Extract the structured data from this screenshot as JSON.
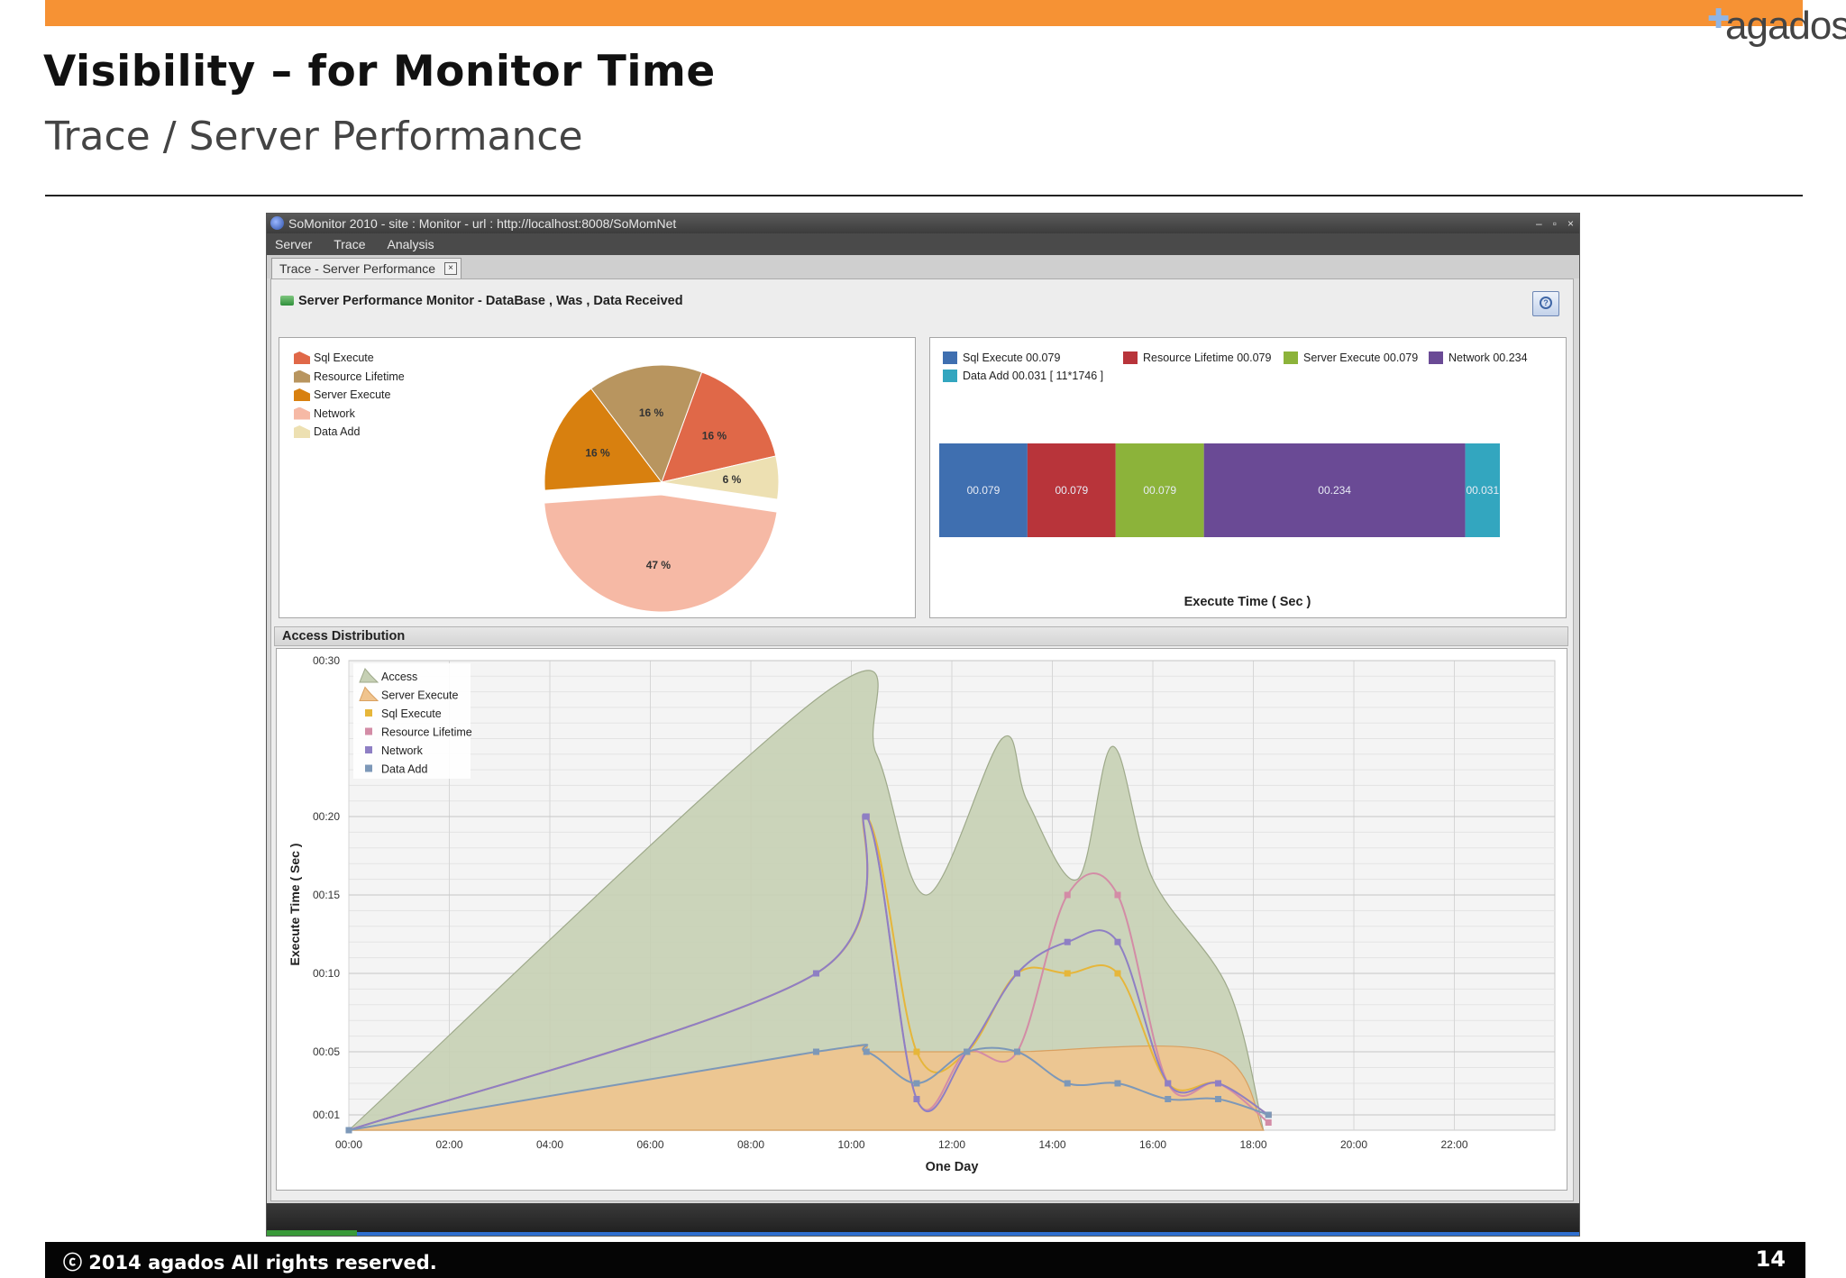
{
  "slide": {
    "title": "Visibility – for Monitor Time",
    "subtitle": "Trace / Server Performance",
    "logo": "agados",
    "footer": "ⓒ 2014 agados All rights reserved.",
    "page_number": "14",
    "accent_color": "#f69234"
  },
  "window": {
    "title": "SoMonitor 2010 - site : Monitor - url : http://localhost:8008/SoMomNet",
    "controls": [
      "–",
      "▫",
      "×"
    ],
    "menu": [
      "Server",
      "Trace",
      "Analysis"
    ],
    "tab_label": "Trace - Server Performance",
    "tab_close": "×",
    "monitor_title": "Server Performance Monitor - DataBase , Was , Data Received",
    "help_icon": "?"
  },
  "access_distribution_label": "Access Distribution",
  "chart_data": [
    {
      "type": "pie",
      "legend": [
        "Sql Execute",
        "Resource Lifetime",
        "Server Execute",
        "Network",
        "Data Add"
      ],
      "legend_placement": "top-left",
      "slices": [
        {
          "name": "Sql Execute",
          "value": 16,
          "label": "16 %",
          "color": "#e06848"
        },
        {
          "name": "Resource Lifetime",
          "value": 16,
          "label": "16 %",
          "color": "#b8955f"
        },
        {
          "name": "Server Execute",
          "value": 16,
          "label": "16 %",
          "color": "#d8800f"
        },
        {
          "name": "Network",
          "value": 47,
          "label": "47 %",
          "color": "#f6b9a5"
        },
        {
          "name": "Data Add",
          "value": 6,
          "label": "6 %",
          "color": "#ede0b2"
        }
      ]
    },
    {
      "type": "bar",
      "orientation": "horizontal-stacked",
      "xlabel": "Execute Time ( Sec )",
      "legend": [
        {
          "name": "Sql Execute",
          "text": "Sql Execute  00.079",
          "color": "#3f6fb0"
        },
        {
          "name": "Resource Lifetime",
          "text": "Resource Lifetime  00.079",
          "color": "#b8343a"
        },
        {
          "name": "Server Execute",
          "text": "Server Execute  00.079",
          "color": "#8cb33a"
        },
        {
          "name": "Network",
          "text": "Network  00.234",
          "color": "#6a4a95"
        },
        {
          "name": "Data Add",
          "text": "Data Add  00.031 [ 11*1746 ]",
          "color": "#33a6bf"
        }
      ],
      "segments": [
        {
          "name": "Sql Execute",
          "value": 0.079,
          "label": "00.079",
          "color": "#3f6fb0"
        },
        {
          "name": "Resource Lifetime",
          "value": 0.079,
          "label": "00.079",
          "color": "#b8343a"
        },
        {
          "name": "Server Execute",
          "value": 0.079,
          "label": "00.079",
          "color": "#8cb33a"
        },
        {
          "name": "Network",
          "value": 0.234,
          "label": "00.234",
          "color": "#6a4a95"
        },
        {
          "name": "Data Add",
          "value": 0.031,
          "label": "00.031",
          "color": "#33a6bf"
        }
      ]
    },
    {
      "type": "line",
      "xlabel": "One Day",
      "ylabel": "Execute Time ( Sec )",
      "xlim": [
        0,
        24
      ],
      "ylim": [
        0,
        30
      ],
      "x_tick_values": [
        0,
        2,
        4,
        6,
        8,
        10,
        12,
        14,
        16,
        18,
        20,
        22
      ],
      "x_ticks": [
        "00:00",
        "02:00",
        "04:00",
        "06:00",
        "08:00",
        "10:00",
        "12:00",
        "14:00",
        "16:00",
        "18:00",
        "20:00",
        "22:00"
      ],
      "y_tick_values": [
        1,
        5,
        10,
        15,
        20,
        30
      ],
      "y_ticks": [
        "00:01",
        "00:05",
        "00:10",
        "00:15",
        "00:20",
        "00:30"
      ],
      "legend": [
        "Access",
        "Server Execute",
        "Sql Execute",
        "Resource Lifetime",
        "Network",
        "Data Add"
      ],
      "legend_placement": "top-left",
      "grid": true,
      "series": [
        {
          "name": "Access",
          "kind": "area",
          "color": "#c6d0b4",
          "stroke": "#9ea98a",
          "x": [
            0,
            9.5,
            10.5,
            11.5,
            13,
            13.5,
            14.5,
            15.2,
            16,
            17.5,
            18.2
          ],
          "y": [
            0,
            28,
            24,
            15,
            25,
            21,
            16,
            24.5,
            16,
            9,
            0
          ]
        },
        {
          "name": "Server Execute",
          "kind": "area",
          "color": "#f0c48e",
          "stroke": "#d9a060",
          "x": [
            0,
            9.3,
            10.3,
            11.3,
            12.3,
            13.3,
            17.2,
            18.2
          ],
          "y": [
            0,
            5,
            5,
            5,
            5,
            5,
            5,
            0
          ]
        },
        {
          "name": "Sql Execute",
          "kind": "line",
          "color": "#e6b63a",
          "x": [
            0,
            9.3,
            10.3,
            11.3,
            12.3,
            13.3,
            14.3,
            15.3,
            16.3,
            17.3,
            18.3
          ],
          "y": [
            0,
            10,
            20,
            5,
            5,
            10,
            10,
            10,
            3,
            3,
            1
          ]
        },
        {
          "name": "Resource Lifetime",
          "kind": "line",
          "color": "#d38ca6",
          "x": [
            0,
            9.3,
            10.3,
            11.3,
            12.3,
            13.3,
            14.3,
            15.3,
            16.3,
            17.3,
            18.3
          ],
          "y": [
            0,
            10,
            20,
            2,
            5,
            5,
            15,
            15,
            3,
            3,
            0.5
          ]
        },
        {
          "name": "Network",
          "kind": "line",
          "color": "#8e7fc4",
          "x": [
            0,
            9.3,
            10.3,
            11.3,
            12.3,
            13.3,
            14.3,
            15.3,
            16.3,
            17.3,
            18.3
          ],
          "y": [
            0,
            10,
            20,
            2,
            5,
            10,
            12,
            12,
            3,
            3,
            1
          ]
        },
        {
          "name": "Data Add",
          "kind": "line",
          "color": "#7d98b8",
          "x": [
            0,
            9.3,
            10.3,
            11.3,
            12.3,
            13.3,
            14.3,
            15.3,
            16.3,
            17.3,
            18.3
          ],
          "y": [
            0,
            5,
            5,
            3,
            5,
            5,
            3,
            3,
            2,
            2,
            1
          ]
        }
      ]
    }
  ]
}
